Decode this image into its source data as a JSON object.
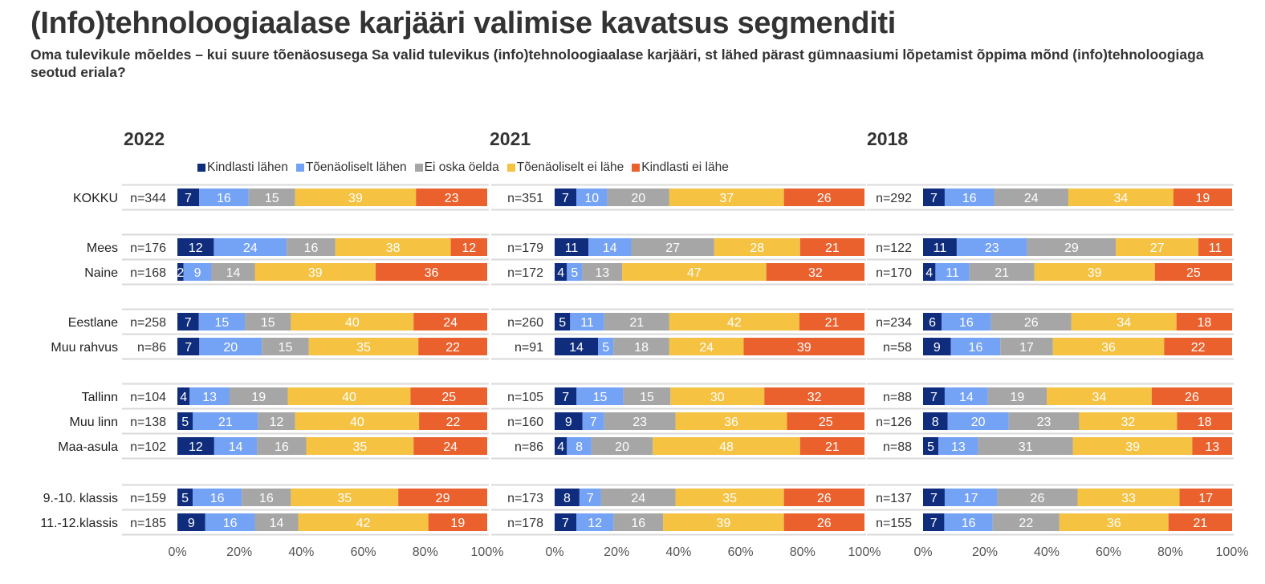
{
  "title": "(Info)tehnoloogiaalase karjääri valimise kavatsus segmenditi",
  "subtitle": "Oma tulevikule mõeldes – kui suure tõenäosusega Sa valid tulevikus (info)tehnoloogiaalase karjääri, st lähed pärast gümnaasiumi lõpetamist õppima mõnd (info)tehnoloogiaga seotud eriala?",
  "chart_data": {
    "type": "bar",
    "orientation": "horizontal-stacked-100",
    "title": "(Info)tehnoloogiaalase karjääri valimise kavatsus segmenditi",
    "xlabel": "",
    "ylabel": "",
    "xlim": [
      0,
      100
    ],
    "x_ticks": [
      "0%",
      "20%",
      "40%",
      "60%",
      "80%",
      "100%"
    ],
    "legend_position": "top",
    "series_names": [
      "Kindlasti lähen",
      "Tõenäoliselt lähen",
      "Ei oska öelda",
      "Tõenäoliselt ei lähe",
      "Kindlasti ei lähe"
    ],
    "colors": [
      "#0f2d7c",
      "#74a2f5",
      "#a6a6a6",
      "#f5c242",
      "#eb612e"
    ],
    "categories": [
      "KOKKU",
      "Mees",
      "Naine",
      "Eestlane",
      "Muu rahvus",
      "Tallinn",
      "Muu linn",
      "Maa-asula",
      "9.-10. klassis",
      "11.-12.klassis"
    ],
    "groups": [
      [
        0
      ],
      [
        1,
        2
      ],
      [
        3,
        4
      ],
      [
        5,
        6,
        7
      ],
      [
        8,
        9
      ]
    ],
    "panels": [
      {
        "year": "2022",
        "n": [
          "n=344",
          "n=176",
          "n=168",
          "n=258",
          "n=86",
          "n=104",
          "n=138",
          "n=102",
          "n=159",
          "n=185"
        ],
        "values": [
          [
            7,
            16,
            15,
            39,
            23
          ],
          [
            12,
            24,
            16,
            38,
            12
          ],
          [
            2,
            9,
            14,
            39,
            36
          ],
          [
            7,
            15,
            15,
            40,
            24
          ],
          [
            7,
            20,
            15,
            35,
            22
          ],
          [
            4,
            13,
            19,
            40,
            25
          ],
          [
            5,
            21,
            12,
            40,
            22
          ],
          [
            12,
            14,
            16,
            35,
            24
          ],
          [
            5,
            16,
            16,
            35,
            29
          ],
          [
            9,
            16,
            14,
            42,
            19
          ]
        ]
      },
      {
        "year": "2021",
        "n": [
          "n=351",
          "n=179",
          "n=172",
          "n=260",
          "n=91",
          "n=105",
          "n=160",
          "n=86",
          "n=173",
          "n=178"
        ],
        "values": [
          [
            7,
            10,
            20,
            37,
            26
          ],
          [
            11,
            14,
            27,
            28,
            21
          ],
          [
            4,
            5,
            13,
            47,
            32
          ],
          [
            5,
            11,
            21,
            42,
            21
          ],
          [
            14,
            5,
            18,
            24,
            39
          ],
          [
            7,
            15,
            15,
            30,
            32
          ],
          [
            9,
            7,
            23,
            36,
            25
          ],
          [
            4,
            8,
            20,
            48,
            21
          ],
          [
            8,
            7,
            24,
            35,
            26
          ],
          [
            7,
            12,
            16,
            39,
            26
          ]
        ]
      },
      {
        "year": "2018",
        "n": [
          "n=292",
          "n=122",
          "n=170",
          "n=234",
          "n=58",
          "n=88",
          "n=126",
          "n=88",
          "n=137",
          "n=155"
        ],
        "values": [
          [
            7,
            16,
            24,
            34,
            19
          ],
          [
            11,
            23,
            29,
            27,
            11
          ],
          [
            4,
            11,
            21,
            39,
            25
          ],
          [
            6,
            16,
            26,
            34,
            18
          ],
          [
            9,
            16,
            17,
            36,
            22
          ],
          [
            7,
            14,
            19,
            34,
            26
          ],
          [
            8,
            20,
            23,
            32,
            18
          ],
          [
            5,
            13,
            31,
            39,
            13
          ],
          [
            7,
            17,
            26,
            33,
            17
          ],
          [
            7,
            16,
            22,
            36,
            21
          ]
        ]
      }
    ]
  }
}
